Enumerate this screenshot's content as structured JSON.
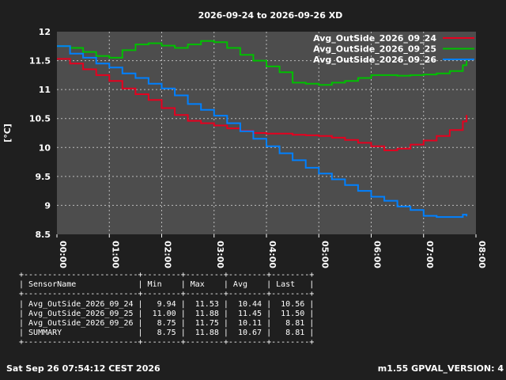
{
  "chart_data": {
    "type": "line",
    "title": "2026-09-24 to 2026-09-26 XD",
    "ylabel": "[°C]",
    "xlabel": "",
    "ylim": [
      8.5,
      12
    ],
    "xlim": [
      0,
      8
    ],
    "yticks": [
      "8.5",
      "9",
      "9.5",
      "10",
      "10.5",
      "11",
      "11.5",
      "12"
    ],
    "xticks": [
      "00:00",
      "01:00",
      "02:00",
      "03:00",
      "04:00",
      "05:00",
      "06:00",
      "07:00",
      "08:00"
    ],
    "grid": true,
    "legend_position": "top-right",
    "colors": {
      "background": "#1f1f1f",
      "plot_area": "#4d4d4d",
      "grid": "#bbbbbb"
    },
    "series": [
      {
        "name": "Avg_OutSide_2026_09_24",
        "color": "#e6001f",
        "x": [
          0,
          0.25,
          0.5,
          0.75,
          1.0,
          1.25,
          1.5,
          1.75,
          2.0,
          2.25,
          2.5,
          2.75,
          3.0,
          3.25,
          3.5,
          3.75,
          4.0,
          4.25,
          4.5,
          4.75,
          5.0,
          5.25,
          5.5,
          5.75,
          6.0,
          6.25,
          6.5,
          6.75,
          7.0,
          7.25,
          7.5,
          7.75,
          7.82
        ],
        "y": [
          11.53,
          11.45,
          11.35,
          11.25,
          11.15,
          11.02,
          10.92,
          10.82,
          10.68,
          10.56,
          10.46,
          10.42,
          10.38,
          10.33,
          10.29,
          10.25,
          10.24,
          10.24,
          10.22,
          10.21,
          10.2,
          10.17,
          10.13,
          10.08,
          10.02,
          9.95,
          9.98,
          10.05,
          10.12,
          10.2,
          10.3,
          10.45,
          10.56
        ]
      },
      {
        "name": "Avg_OutSide_2026_09_25",
        "color": "#00c000",
        "x": [
          0,
          0.25,
          0.5,
          0.75,
          1.0,
          1.25,
          1.5,
          1.75,
          2.0,
          2.25,
          2.5,
          2.75,
          3.0,
          3.25,
          3.5,
          3.75,
          4.0,
          4.25,
          4.5,
          4.75,
          5.0,
          5.25,
          5.5,
          5.75,
          6.0,
          6.25,
          6.5,
          6.75,
          7.0,
          7.25,
          7.5,
          7.75,
          7.82
        ],
        "y": [
          11.75,
          11.72,
          11.65,
          11.58,
          11.55,
          11.68,
          11.78,
          11.8,
          11.76,
          11.72,
          11.78,
          11.84,
          11.82,
          11.72,
          11.6,
          11.5,
          11.4,
          11.3,
          11.12,
          11.1,
          11.08,
          11.12,
          11.15,
          11.2,
          11.25,
          11.25,
          11.24,
          11.25,
          11.26,
          11.28,
          11.32,
          11.42,
          11.5
        ]
      },
      {
        "name": "Avg_OutSide_2026_09_26",
        "color": "#0080ff",
        "x": [
          0,
          0.25,
          0.5,
          0.75,
          1.0,
          1.25,
          1.5,
          1.75,
          2.0,
          2.25,
          2.5,
          2.75,
          3.0,
          3.25,
          3.5,
          3.75,
          4.0,
          4.25,
          4.5,
          4.75,
          5.0,
          5.25,
          5.5,
          5.75,
          6.0,
          6.25,
          6.5,
          6.75,
          7.0,
          7.25,
          7.5,
          7.75,
          7.82
        ],
        "y": [
          11.75,
          11.62,
          11.55,
          11.45,
          11.38,
          11.28,
          11.2,
          11.1,
          11.02,
          10.9,
          10.75,
          10.65,
          10.55,
          10.42,
          10.28,
          10.15,
          10.02,
          9.9,
          9.78,
          9.65,
          9.55,
          9.45,
          9.35,
          9.25,
          9.15,
          9.08,
          8.98,
          8.92,
          8.82,
          8.8,
          8.8,
          8.84,
          8.81
        ]
      }
    ]
  },
  "stats_table": {
    "columns": [
      "SensorName",
      "Min",
      "Max",
      "Avg",
      "Last"
    ],
    "rows": [
      [
        "Avg_OutSide_2026_09_24",
        "9.94",
        "11.53",
        "10.44",
        "10.56"
      ],
      [
        "Avg_OutSide_2026_09_25",
        "11.00",
        "11.88",
        "11.45",
        "11.50"
      ],
      [
        "Avg_OutSide_2026_09_26",
        "8.75",
        "11.75",
        "10.11",
        "8.81"
      ],
      [
        "SUMMARY",
        "8.75",
        "11.88",
        "10.67",
        "8.81"
      ]
    ]
  },
  "footer": {
    "timestamp": "Sat Sep 26 07:54:12 CEST 2026",
    "version": "m1.55 GPVAL_VERSION: 4"
  }
}
